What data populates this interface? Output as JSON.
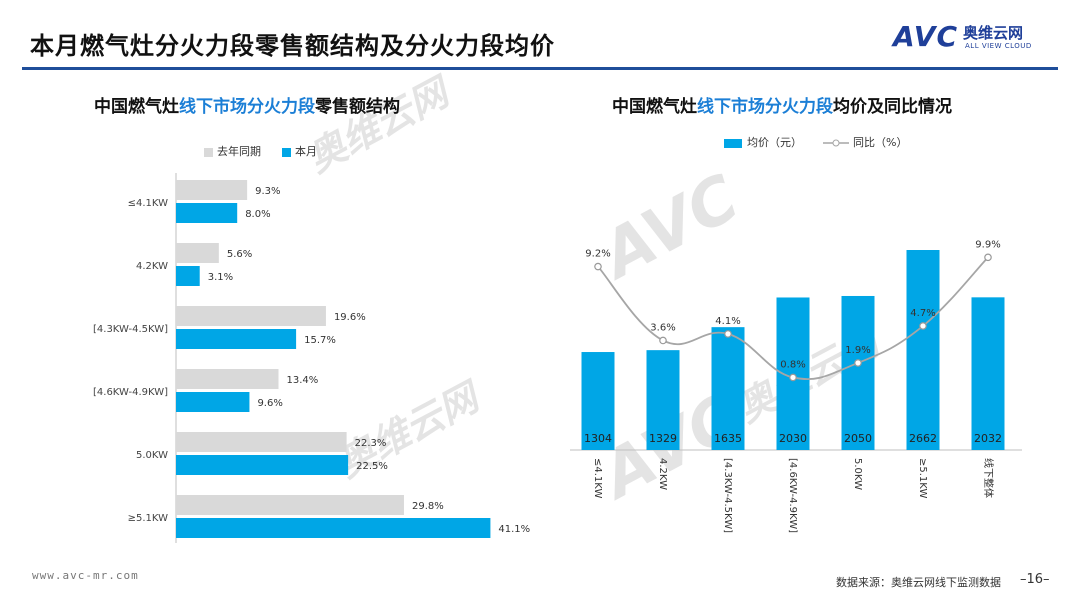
{
  "page": {
    "title": "本月燃气灶分火力段零售额结构及分火力段均价",
    "footer_url": "www.avc-mr.com",
    "source": "数据来源：奥维云网线下监测数据",
    "page_number": "–16–"
  },
  "logo": {
    "brand": "AVC",
    "cn": "奥维云网",
    "en": "ALL VIEW CLOUD",
    "watermark_cn": "奥维云网",
    "watermark_en": "ALL VIEW CLOUD"
  },
  "colors": {
    "current": "#00a6e6",
    "last_year": "#d9d9d9",
    "line": "#a6a6a6",
    "accent": "#1f4e9a",
    "highlight": "#1c7fd6"
  },
  "left": {
    "title_pre": "中国燃气灶",
    "title_hl": "线下市场分火力段",
    "title_post": "零售额结构",
    "legend": {
      "last_year": "去年同期",
      "current": "本月"
    }
  },
  "right": {
    "title_pre": "中国燃气灶",
    "title_hl": "线下市场分火力段",
    "title_post": "均价及同比情况",
    "legend": {
      "bar": "均价（元）",
      "line": "同比（%）"
    }
  },
  "chart_data": [
    {
      "type": "bar",
      "orientation": "horizontal",
      "categories": [
        "≤4.1KW",
        "4.2KW",
        "[4.3KW-4.5KW]",
        "[4.6KW-4.9KW]",
        "5.0KW",
        "≥5.1KW"
      ],
      "series": [
        {
          "name": "去年同期",
          "values": [
            9.3,
            5.6,
            19.6,
            13.4,
            22.3,
            29.8
          ],
          "labels": [
            "9.3%",
            "5.6%",
            "19.6%",
            "13.4%",
            "22.3%",
            "29.8%"
          ]
        },
        {
          "name": "本月",
          "values": [
            8.0,
            3.1,
            15.7,
            9.6,
            22.5,
            41.1
          ],
          "labels": [
            "8.0%",
            "3.1%",
            "15.7%",
            "9.6%",
            "22.5%",
            "41.1%"
          ]
        }
      ],
      "xlim": [
        0,
        45
      ],
      "legend_position": "top-left",
      "grid": false
    },
    {
      "type": "bar+line",
      "categories": [
        "≤4.1KW",
        "4.2KW",
        "[4.3KW-4.5KW]",
        "[4.6KW-4.9KW]",
        "5.0KW",
        "≥5.1KW",
        "线下整体"
      ],
      "series": [
        {
          "name": "均价（元）",
          "type": "bar",
          "values": [
            1304,
            1329,
            1635,
            2030,
            2050,
            2662,
            2032
          ],
          "labels": [
            "1304",
            "1329",
            "1635",
            "2030",
            "2050",
            "2662",
            "2032"
          ]
        },
        {
          "name": "同比（%）",
          "type": "line",
          "smooth": true,
          "values": [
            9.2,
            3.6,
            4.1,
            0.8,
            1.9,
            4.7,
            9.9
          ],
          "labels": [
            "9.2%",
            "3.6%",
            "4.1%",
            "0.8%",
            "1.9%",
            "4.7%",
            "9.9%"
          ]
        }
      ],
      "ylim_bar": [
        0,
        3000
      ],
      "ylim_line": [
        0,
        12
      ],
      "legend_position": "top",
      "grid": false
    }
  ]
}
